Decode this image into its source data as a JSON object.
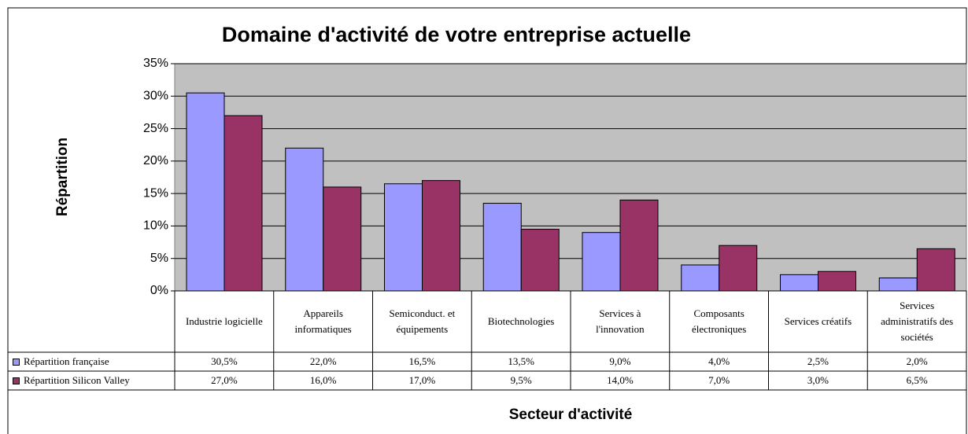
{
  "chart_data": {
    "type": "bar",
    "title": "Domaine d'activité de votre entreprise actuelle",
    "y_label": "Répartition",
    "x_label": "Secteur d'activité",
    "categories": [
      "Industrie logicielle",
      "Appareils informatiques",
      "Semiconduct. et équipements",
      "Biotechnologies",
      "Services à l'innovation",
      "Composants électroniques",
      "Services créatifs",
      "Services administratifs des sociétés"
    ],
    "series": [
      {
        "name": "Répartition française",
        "color": "#9999ff",
        "values": [
          30.5,
          22.0,
          16.5,
          13.5,
          9.0,
          4.0,
          2.5,
          2.0
        ],
        "value_labels": [
          "30,5%",
          "22,0%",
          "16,5%",
          "13,5%",
          "9,0%",
          "4,0%",
          "2,5%",
          "2,0%"
        ]
      },
      {
        "name": "Répartition Silicon Valley",
        "color": "#993366",
        "values": [
          27.0,
          16.0,
          17.0,
          9.5,
          14.0,
          7.0,
          3.0,
          6.5
        ],
        "value_labels": [
          "27,0%",
          "16,0%",
          "17,0%",
          "9,5%",
          "14,0%",
          "7,0%",
          "3,0%",
          "6,5%"
        ]
      }
    ],
    "ylim": [
      0,
      35
    ],
    "yticks": [
      {
        "value": 0,
        "label": "0%"
      },
      {
        "value": 5,
        "label": "5%"
      },
      {
        "value": 10,
        "label": "10%"
      },
      {
        "value": 15,
        "label": "15%"
      },
      {
        "value": 20,
        "label": "20%"
      },
      {
        "value": 25,
        "label": "25%"
      },
      {
        "value": 30,
        "label": "30%"
      },
      {
        "value": 35,
        "label": "35%"
      }
    ],
    "grid": true,
    "plot_background": "#c0c0c0"
  }
}
